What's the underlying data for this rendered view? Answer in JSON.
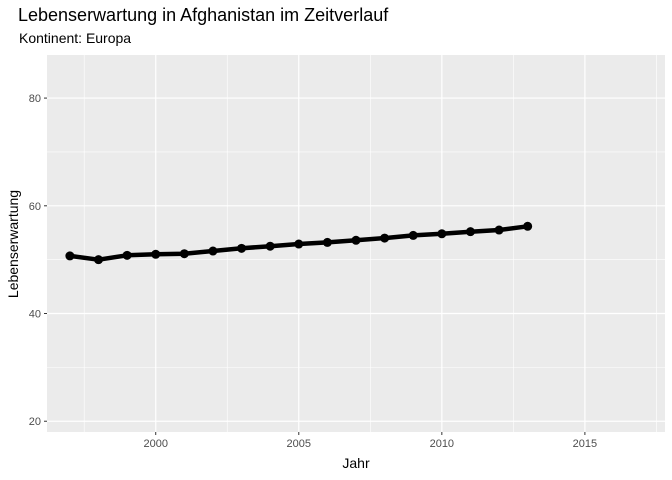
{
  "chart_data": {
    "type": "line",
    "title": "Lebenserwartung in Afghanistan im Zeitverlauf",
    "subtitle": "Kontinent: Europa",
    "xlabel": "Jahr",
    "ylabel": "Lebenserwartung",
    "xlim": [
      1996.2,
      2017.8
    ],
    "ylim": [
      18,
      88
    ],
    "x_ticks": [
      2000,
      2005,
      2010,
      2015
    ],
    "y_ticks": [
      20,
      40,
      60,
      80
    ],
    "x_minor_ticks": [
      1997.5,
      2002.5,
      2007.5,
      2012.5,
      2017.5
    ],
    "y_minor_ticks": [
      30,
      50,
      70
    ],
    "grid": true,
    "legend": "none",
    "colors": {
      "panel": "#ebebeb",
      "grid": "#ffffff",
      "line": "#000000"
    },
    "x": [
      1997,
      1998,
      1999,
      2000,
      2001,
      2002,
      2003,
      2004,
      2005,
      2006,
      2007,
      2008,
      2009,
      2010,
      2011,
      2012,
      2013
    ],
    "values": [
      50.7,
      50.0,
      50.8,
      51.0,
      51.1,
      51.6,
      52.1,
      52.5,
      52.9,
      53.2,
      53.6,
      54.0,
      54.5,
      54.8,
      55.2,
      55.5,
      56.2
    ]
  }
}
